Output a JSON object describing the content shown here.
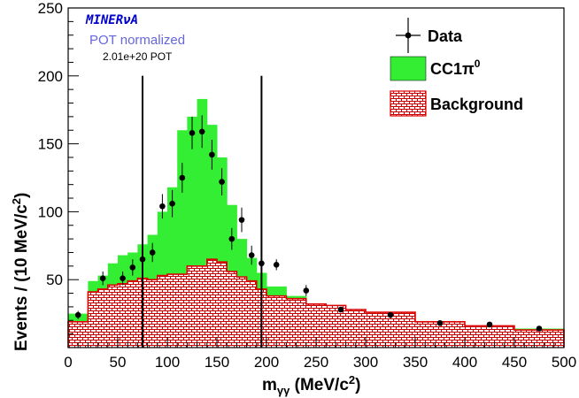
{
  "chart_data": {
    "type": "bar",
    "xlabel": "m",
    "xlabel_sub": "γγ",
    "xlabel_unit": " (MeV/c",
    "xlabel_unit_sup": "2",
    "xlabel_unit_end": ")",
    "ylabel": "Events / (10 MeV/c",
    "ylabel_sup": "2",
    "ylabel_end": ")",
    "xlim": [
      0,
      500
    ],
    "ylim": [
      0,
      250
    ],
    "x_ticks": [
      "0",
      "50",
      "100",
      "150",
      "200",
      "250",
      "300",
      "350",
      "400",
      "450",
      "500"
    ],
    "y_ticks": [
      "50",
      "100",
      "150",
      "200",
      "250"
    ],
    "annotations": {
      "experiment": "MINERνA",
      "normalization": "POT normalized",
      "pot": "2.01e+20 POT"
    },
    "cut_lines": [
      75,
      195
    ],
    "legend": {
      "placement": "top-right",
      "data_label": "Data",
      "signal_label": "CC1π",
      "signal_sup": "0",
      "background_label": "Background"
    },
    "colors": {
      "signal_fill": "#33ee33",
      "background_fill": "#ffffff",
      "background_pattern": "#cc0000",
      "background_line": "#dd0000",
      "experiment_text": "#0000cc",
      "normalization_text": "#6666dd"
    },
    "bin_edges": [
      0,
      20,
      30,
      40,
      50,
      60,
      70,
      80,
      90,
      100,
      110,
      120,
      130,
      140,
      150,
      160,
      170,
      180,
      190,
      200,
      220,
      240,
      260,
      280,
      300,
      350,
      400,
      450,
      500
    ],
    "series": [
      {
        "name": "Background",
        "values": [
          19,
          41,
          43,
          46,
          47,
          49,
          51,
          50,
          53,
          54,
          54,
          60,
          60,
          65,
          63,
          56,
          52,
          49,
          43,
          38,
          36,
          32,
          31,
          28,
          26,
          19,
          16,
          13
        ]
      },
      {
        "name": "CC1π0",
        "values": [
          25,
          49,
          53,
          62,
          68,
          70,
          76,
          83,
          100,
          118,
          160,
          170,
          183,
          164,
          140,
          105,
          80,
          66,
          55,
          45,
          38,
          32,
          29,
          26,
          24,
          18,
          16,
          14
        ]
      },
      {
        "name": "Data",
        "x": [
          10,
          35,
          55,
          65,
          75,
          85,
          95,
          105,
          115,
          125,
          135,
          145,
          155,
          165,
          175,
          185,
          195,
          210,
          240,
          275,
          325,
          375,
          425,
          475
        ],
        "y": [
          24,
          51,
          51,
          59,
          65,
          70,
          104,
          106,
          125,
          158,
          159,
          142,
          122,
          80,
          94,
          68,
          62,
          61,
          42,
          28,
          24,
          18,
          17,
          14
        ],
        "yerr": [
          3,
          5,
          5,
          6,
          7,
          7,
          9,
          10,
          11,
          12,
          12,
          11,
          10,
          8,
          9,
          7,
          7,
          4,
          4,
          2,
          2,
          1,
          1,
          1
        ]
      }
    ]
  }
}
